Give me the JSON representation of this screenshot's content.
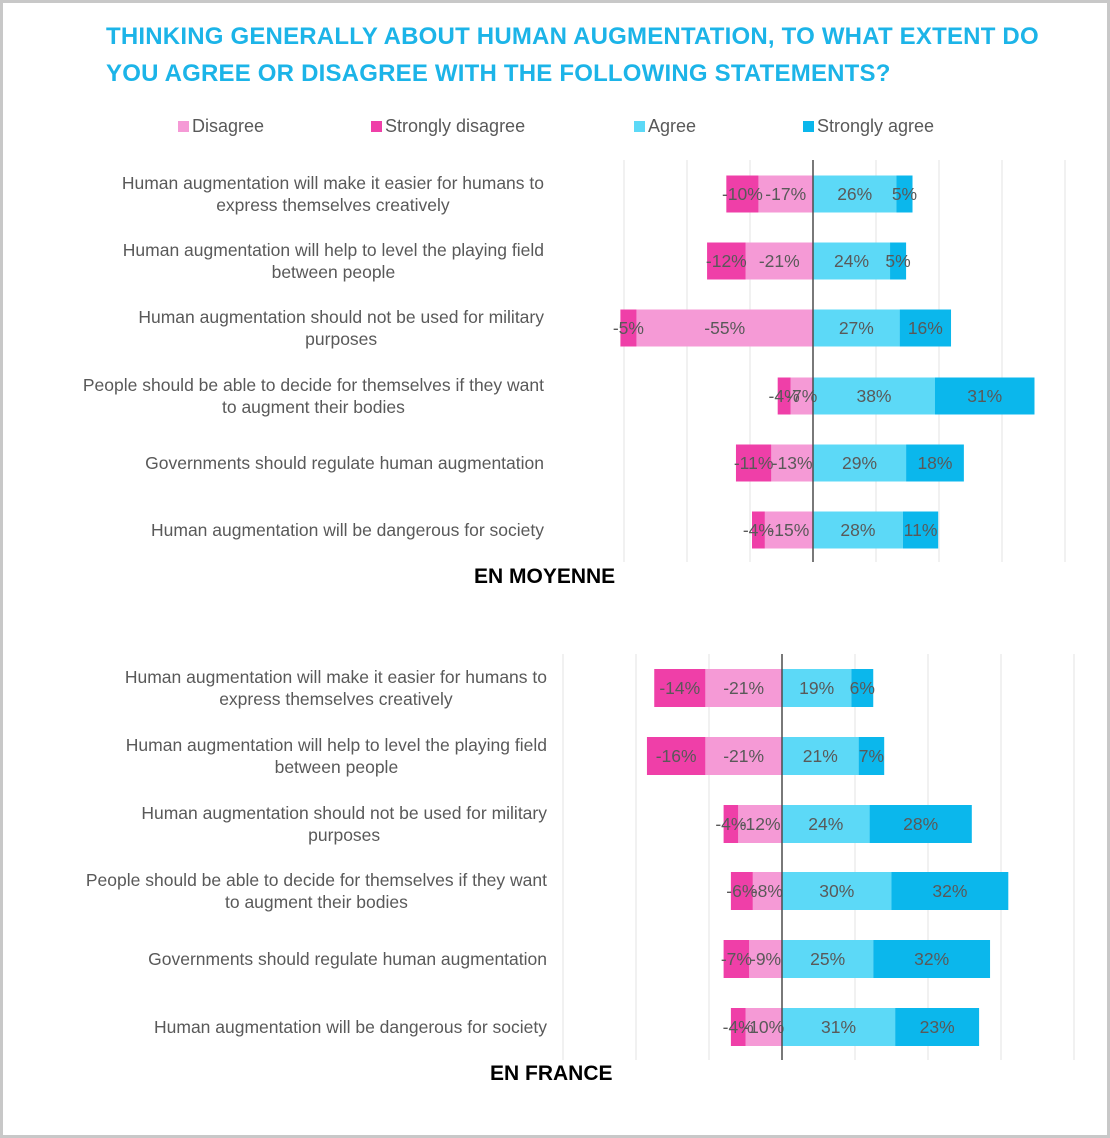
{
  "title": "THINKING GENERALLY ABOUT HUMAN AUGMENTATION, TO WHAT EXTENT DO YOU AGREE OR DISAGREE WITH THE FOLLOWING STATEMENTS?",
  "legend": [
    {
      "name": "Disagree",
      "color": "#f59ad6"
    },
    {
      "name": "Strongly disagree",
      "color": "#ef3fa8"
    },
    {
      "name": "Agree",
      "color": "#5cd9f7"
    },
    {
      "name": "Strongly agree",
      "color": "#0bb7ec"
    }
  ],
  "chart_data": [
    {
      "type": "bar",
      "orientation": "horizontal",
      "stacked": "diverging",
      "title": "EN MOYENNE",
      "categories": [
        "Human augmentation will make it easier for humans to express themselves creatively",
        "Human augmentation will help to level the playing field between people",
        "Human augmentation should not be used for military purposes",
        "People should be able to decide for themselves if they want to augment their bodies",
        "Governments should regulate human augmentation",
        "Human augmentation will be dangerous for society"
      ],
      "series": [
        {
          "name": "Disagree",
          "values": [
            -17,
            -21,
            -55,
            -7,
            -13,
            -15
          ],
          "labels": [
            "-17%",
            "-21%",
            "-55%",
            "-7%",
            "-13%",
            "-15%"
          ]
        },
        {
          "name": "Strongly disagree",
          "values": [
            -10,
            -12,
            -5,
            -4,
            -11,
            -4
          ],
          "labels": [
            "-10%",
            "-12%",
            "-5%",
            "-4%",
            "-11%",
            "-4%"
          ]
        },
        {
          "name": "Agree",
          "values": [
            26,
            24,
            27,
            38,
            29,
            28
          ],
          "labels": [
            "26%",
            "24%",
            "27%",
            "38%",
            "29%",
            "28%"
          ]
        },
        {
          "name": "Strongly agree",
          "values": [
            5,
            5,
            16,
            31,
            18,
            11
          ],
          "labels": [
            "5%",
            "5%",
            "16%",
            "31%",
            "18%",
            "11%"
          ]
        }
      ],
      "grid": true
    },
    {
      "type": "bar",
      "orientation": "horizontal",
      "stacked": "diverging",
      "title": "EN FRANCE",
      "categories": [
        "Human augmentation will make it easier for humans to express themselves creatively",
        "Human augmentation will help to level the playing field between people",
        "Human augmentation should not be used for military purposes",
        "People should be able to decide for themselves if they want to augment their bodies",
        "Governments should regulate human augmentation",
        "Human augmentation will be dangerous for society"
      ],
      "series": [
        {
          "name": "Disagree",
          "values": [
            -21,
            -21,
            -12,
            -8,
            -9,
            -10
          ],
          "labels": [
            "-21%",
            "-21%",
            "-12%",
            "-8%",
            "-9%",
            "-10%"
          ]
        },
        {
          "name": "Strongly disagree",
          "values": [
            -14,
            -16,
            -4,
            -6,
            -7,
            -4
          ],
          "labels": [
            "-14%",
            "-16%",
            "-4%",
            "-6%",
            "-7%",
            "-4%"
          ]
        },
        {
          "name": "Agree",
          "values": [
            19,
            21,
            24,
            30,
            25,
            31
          ],
          "labels": [
            "19%",
            "21%",
            "24%",
            "30%",
            "25%",
            "31%"
          ]
        },
        {
          "name": "Strongly agree",
          "values": [
            6,
            7,
            28,
            32,
            32,
            23
          ],
          "labels": [
            "6%",
            "7%",
            "28%",
            "32%",
            "32%",
            "23%"
          ]
        }
      ],
      "grid": true
    }
  ]
}
